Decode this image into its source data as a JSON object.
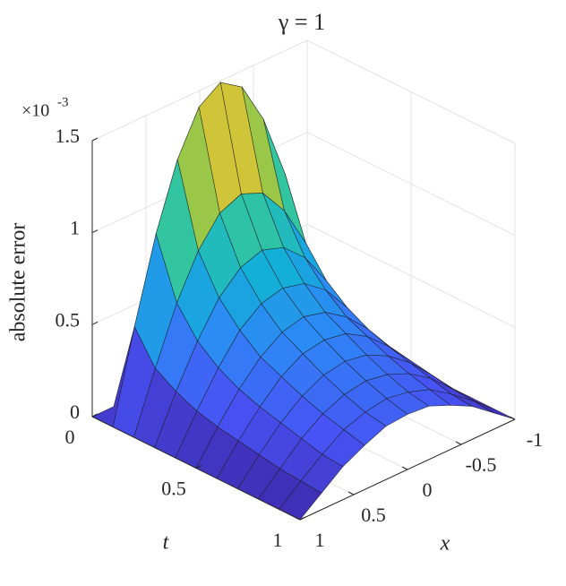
{
  "chart_data": {
    "type": "surface",
    "title": "γ = 1",
    "xlabel": "x",
    "ylabel": "t",
    "zlabel": "absolute error",
    "z_multiplier": "×10",
    "z_exponent": "-3",
    "colormap": "parula",
    "grid": true,
    "x": [
      -1,
      -0.8,
      -0.6,
      -0.4,
      -0.2,
      0,
      0.2,
      0.4,
      0.6,
      0.8,
      1
    ],
    "y": [
      0,
      0.1,
      0.2,
      0.3,
      0.4,
      0.5,
      0.6,
      0.7,
      0.8,
      0.9,
      1
    ],
    "z": [
      [
        0,
        0,
        0,
        0,
        0,
        0,
        0,
        0,
        0,
        0,
        0
      ],
      [
        0,
        0.49,
        0.94,
        1.29,
        1.52,
        1.6,
        1.52,
        1.29,
        0.94,
        0.49,
        0
      ],
      [
        0,
        0.32,
        0.62,
        0.85,
        1.0,
        1.05,
        1.0,
        0.85,
        0.62,
        0.32,
        0
      ],
      [
        0,
        0.25,
        0.47,
        0.65,
        0.76,
        0.8,
        0.76,
        0.65,
        0.47,
        0.25,
        0
      ],
      [
        0,
        0.2,
        0.38,
        0.53,
        0.62,
        0.65,
        0.62,
        0.53,
        0.38,
        0.2,
        0
      ],
      [
        0,
        0.17,
        0.32,
        0.44,
        0.52,
        0.55,
        0.52,
        0.44,
        0.32,
        0.17,
        0
      ],
      [
        0,
        0.15,
        0.28,
        0.39,
        0.46,
        0.48,
        0.46,
        0.39,
        0.28,
        0.15,
        0
      ],
      [
        0,
        0.13,
        0.25,
        0.34,
        0.4,
        0.42,
        0.4,
        0.34,
        0.25,
        0.13,
        0
      ],
      [
        0,
        0.11,
        0.22,
        0.3,
        0.35,
        0.37,
        0.35,
        0.3,
        0.22,
        0.11,
        0
      ],
      [
        0,
        0.1,
        0.19,
        0.27,
        0.31,
        0.33,
        0.31,
        0.27,
        0.19,
        0.1,
        0
      ],
      [
        0,
        0.09,
        0.18,
        0.24,
        0.29,
        0.3,
        0.29,
        0.24,
        0.18,
        0.09,
        0
      ]
    ],
    "xlim": [
      -1,
      1
    ],
    "ylim": [
      0,
      1
    ],
    "zlim": [
      0,
      1.5
    ],
    "xticks": [
      -1,
      -0.5,
      0,
      0.5,
      1
    ],
    "yticks": [
      0,
      0.5,
      1
    ],
    "zticks": [
      0,
      0.5,
      1,
      1.5
    ]
  }
}
